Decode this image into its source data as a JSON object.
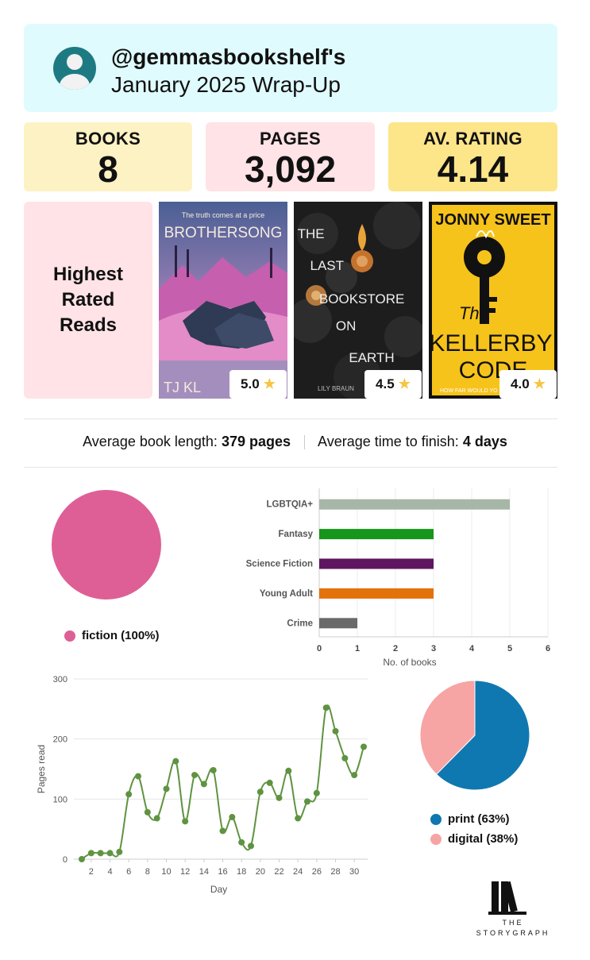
{
  "header": {
    "username": "@gemmasbookshelf's",
    "subtitle": "January 2025 Wrap-Up"
  },
  "stats": [
    {
      "label": "BOOKS",
      "value": "8",
      "color": "#fdf2c4"
    },
    {
      "label": "PAGES",
      "value": "3,092",
      "color": "#ffe3e6"
    },
    {
      "label": "AV. RATING",
      "value": "4.14",
      "color": "#fde58a"
    }
  ],
  "highest_rated": {
    "heading": "Highest\nRated\nReads",
    "books": [
      {
        "tagline": "The truth comes at a price",
        "title": "BROTHERSONG",
        "author": "TJ KL",
        "rating": "5.0"
      },
      {
        "title_lines": [
          "THE",
          "LAST",
          "BOOKSTORE",
          "ON",
          "EARTH"
        ],
        "author": "LILY BRAUN",
        "rating": "4.5"
      },
      {
        "author": "JONNY SWEET",
        "title_lines": [
          "The",
          "KELLERBY",
          "CODE"
        ],
        "tagline": "HOW FAR WOULD YO",
        "rating": "4.0"
      }
    ]
  },
  "averages": {
    "length_label": "Average book length:",
    "length_value": "379 pages",
    "time_label": "Average time to finish:",
    "time_value": "4 days"
  },
  "fiction_pie": {
    "slices": [
      {
        "name": "fiction",
        "percent": 100,
        "color": "#de5f96"
      }
    ],
    "legend": "fiction (100%)"
  },
  "chart_data": [
    {
      "type": "bar",
      "orientation": "horizontal",
      "categories": [
        "LGBTQIA+",
        "Fantasy",
        "Science Fiction",
        "Young Adult",
        "Crime"
      ],
      "values": [
        5,
        3,
        3,
        3,
        1
      ],
      "colors": [
        "#a7b7a7",
        "#17961c",
        "#5e1661",
        "#e4720b",
        "#6a6a6a"
      ],
      "xlabel": "No. of books",
      "xlim": [
        0,
        6
      ],
      "xticks": [
        "0",
        "1",
        "2",
        "3",
        "4",
        "5",
        "6"
      ],
      "grid": true
    },
    {
      "type": "line",
      "x": [
        1,
        2,
        3,
        4,
        5,
        6,
        7,
        8,
        9,
        10,
        11,
        12,
        13,
        14,
        15,
        16,
        17,
        18,
        19,
        20,
        21,
        22,
        23,
        24,
        25,
        26,
        27,
        28,
        29,
        30,
        31
      ],
      "y": [
        0,
        10,
        10,
        10,
        12,
        108,
        138,
        78,
        68,
        117,
        163,
        63,
        140,
        125,
        148,
        47,
        70,
        28,
        22,
        112,
        127,
        102,
        147,
        68,
        96,
        110,
        252,
        213,
        168,
        140,
        187
      ],
      "xlabel": "Day",
      "ylabel": "Pages read",
      "ylim": [
        0,
        300
      ],
      "yticks": [
        "0",
        "100",
        "200",
        "300"
      ],
      "xticks": [
        "2",
        "4",
        "6",
        "8",
        "10",
        "12",
        "14",
        "16",
        "18",
        "20",
        "22",
        "24",
        "26",
        "28",
        "30"
      ],
      "color": "#5f9341",
      "grid": true
    },
    {
      "type": "pie",
      "slices": [
        {
          "name": "print",
          "percent": 63,
          "color": "#0f78b0",
          "label": "print (63%)"
        },
        {
          "name": "digital",
          "percent": 38,
          "color": "#f7a4a4",
          "label": "digital (38%)"
        }
      ]
    }
  ],
  "brand": {
    "line1": "THE",
    "line2": "STORYGRAPH"
  }
}
